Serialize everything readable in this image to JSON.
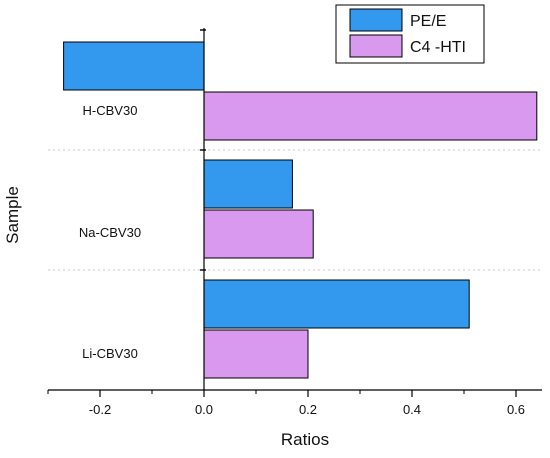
{
  "chart_data": {
    "type": "bar",
    "orientation": "horizontal",
    "title": "",
    "xlabel": "Ratios",
    "ylabel": "Sample",
    "categories": [
      "H-CBV30",
      "Na-CBV30",
      "Li-CBV30"
    ],
    "series": [
      {
        "name": "PE/E",
        "color": "#3399ee",
        "values": [
          -0.27,
          0.17,
          0.51
        ]
      },
      {
        "name": "C4 -HTI",
        "color": "#d899ee",
        "values": [
          0.64,
          0.21,
          0.2
        ]
      }
    ],
    "xlim": [
      -0.3,
      0.65
    ],
    "xticks": [
      "-0.2",
      "0.0",
      "0.2",
      "0.4",
      "0.6"
    ],
    "xtick_values": [
      -0.2,
      0.0,
      0.2,
      0.4,
      0.6
    ],
    "grid": "dotted separators between sample groups",
    "legend_position": "top-right"
  }
}
